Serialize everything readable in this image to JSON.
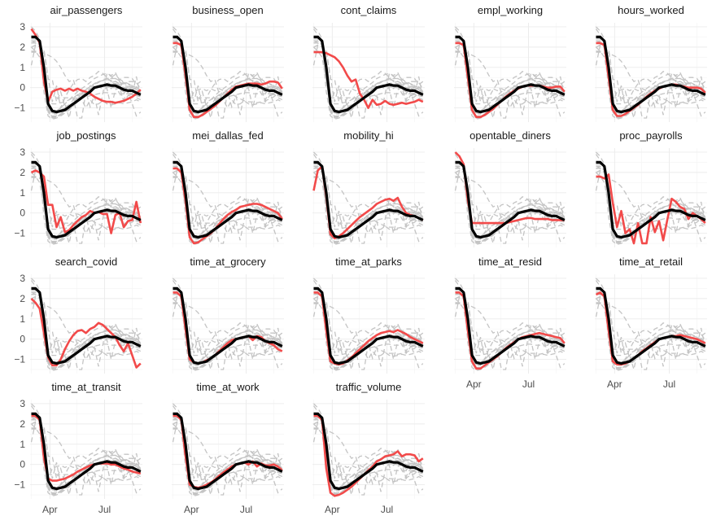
{
  "chart_data": {
    "type": "line",
    "layout": "facet-grid",
    "y_ticks": [
      3,
      2,
      1,
      0,
      -1
    ],
    "ylim": [
      -1.7,
      3.2
    ],
    "x_ticks": [
      "Apr",
      "Jul"
    ],
    "x": [
      "2020-03-01",
      "2020-03-08",
      "2020-03-15",
      "2020-03-22",
      "2020-03-29",
      "2020-04-05",
      "2020-04-12",
      "2020-04-19",
      "2020-04-26",
      "2020-05-03",
      "2020-05-10",
      "2020-05-17",
      "2020-05-24",
      "2020-05-31",
      "2020-06-07",
      "2020-06-14",
      "2020-06-21",
      "2020-06-28",
      "2020-07-05",
      "2020-07-12",
      "2020-07-19",
      "2020-07-26",
      "2020-08-02",
      "2020-08-09",
      "2020-08-16",
      "2020-08-23",
      "2020-08-30"
    ],
    "common_series": [
      2.5,
      2.5,
      2.3,
      1.0,
      -0.8,
      -1.15,
      -1.2,
      -1.15,
      -1.1,
      -0.95,
      -0.8,
      -0.65,
      -0.5,
      -0.35,
      -0.2,
      0.0,
      0.05,
      0.1,
      0.15,
      0.1,
      0.1,
      0.0,
      -0.1,
      -0.15,
      -0.15,
      -0.25,
      -0.35
    ],
    "colors": {
      "common": "#000000",
      "indicator": "#f24a4a",
      "others": "#c4c4c4"
    },
    "panels": [
      {
        "name": "air_passengers",
        "values": [
          2.9,
          2.6,
          2.2,
          0.3,
          -0.7,
          -0.2,
          -0.1,
          -0.05,
          -0.15,
          -0.05,
          -0.15,
          -0.05,
          -0.15,
          -0.2,
          -0.3,
          -0.45,
          -0.55,
          -0.65,
          -0.7,
          -0.7,
          -0.75,
          -0.7,
          -0.65,
          -0.55,
          -0.45,
          -0.3,
          -0.1
        ]
      },
      {
        "name": "business_open",
        "values": [
          2.2,
          2.2,
          2.1,
          0.6,
          -1.1,
          -1.45,
          -1.45,
          -1.35,
          -1.2,
          -1.05,
          -0.9,
          -0.7,
          -0.5,
          -0.3,
          -0.1,
          0.05,
          0.1,
          0.15,
          0.2,
          0.2,
          0.2,
          0.15,
          0.2,
          0.3,
          0.3,
          0.25,
          -0.05
        ]
      },
      {
        "name": "cont_claims",
        "values": [
          1.75,
          1.75,
          1.75,
          1.7,
          1.6,
          1.5,
          1.3,
          1.0,
          0.6,
          0.3,
          0.4,
          -0.3,
          -0.6,
          -1.0,
          -0.6,
          -0.85,
          -0.8,
          -0.65,
          -0.8,
          -0.85,
          -0.8,
          -0.75,
          -0.8,
          -0.75,
          -0.7,
          -0.6,
          -0.7
        ]
      },
      {
        "name": "empl_working",
        "values": [
          2.2,
          2.2,
          2.1,
          0.5,
          -1.1,
          -1.45,
          -1.45,
          -1.35,
          -1.2,
          -1.05,
          -0.85,
          -0.65,
          -0.45,
          -0.3,
          -0.15,
          -0.05,
          0.05,
          0.1,
          0.1,
          0.1,
          0.1,
          0.05,
          0.0,
          0.0,
          0.05,
          0.05,
          -0.2
        ]
      },
      {
        "name": "hours_worked",
        "values": [
          2.2,
          2.2,
          2.1,
          0.5,
          -1.1,
          -1.4,
          -1.4,
          -1.3,
          -1.15,
          -1.0,
          -0.85,
          -0.65,
          -0.45,
          -0.3,
          -0.15,
          -0.05,
          0.05,
          0.1,
          0.15,
          0.15,
          0.1,
          0.05,
          0.0,
          0.0,
          0.0,
          -0.05,
          -0.25
        ]
      },
      {
        "name": "job_postings",
        "values": [
          2.0,
          2.1,
          2.0,
          1.8,
          0.4,
          0.4,
          -0.7,
          -0.2,
          -0.95,
          -0.85,
          -0.6,
          -0.4,
          -0.2,
          -0.1,
          0.1,
          0.0,
          0.05,
          -0.05,
          -0.05,
          -1.0,
          -0.1,
          0.0,
          -0.7,
          -0.4,
          -0.35,
          0.55,
          -0.5
        ]
      },
      {
        "name": "mei_dallas_fed",
        "values": [
          2.2,
          2.2,
          2.0,
          0.6,
          -1.2,
          -1.5,
          -1.45,
          -1.3,
          -1.15,
          -1.0,
          -0.8,
          -0.55,
          -0.3,
          -0.1,
          0.05,
          0.15,
          0.3,
          0.35,
          0.4,
          0.45,
          0.45,
          0.4,
          0.3,
          0.2,
          0.1,
          0.0,
          -0.3
        ]
      },
      {
        "name": "mobility_hi",
        "values": [
          1.1,
          2.1,
          2.3,
          0.8,
          -1.05,
          -1.25,
          -1.15,
          -1.0,
          -0.8,
          -0.6,
          -0.4,
          -0.2,
          -0.05,
          0.1,
          0.25,
          0.45,
          0.55,
          0.65,
          0.7,
          0.6,
          0.75,
          0.3,
          0.0,
          -0.1,
          -0.15,
          -0.25,
          -0.35
        ]
      },
      {
        "name": "opentable_diners",
        "values": [
          3.0,
          2.8,
          2.4,
          0.6,
          -0.5,
          -0.5,
          -0.5,
          -0.5,
          -0.5,
          -0.5,
          -0.5,
          -0.5,
          -0.5,
          -0.45,
          -0.4,
          -0.35,
          -0.3,
          -0.25,
          -0.25,
          -0.3,
          -0.3,
          -0.3,
          -0.3,
          -0.35,
          -0.35,
          -0.35,
          -0.35
        ]
      },
      {
        "name": "proc_payrolls",
        "values": [
          1.8,
          1.8,
          1.7,
          1.9,
          0.5,
          -0.7,
          0.1,
          -1.0,
          -0.8,
          -1.5,
          -0.5,
          -1.5,
          -1.5,
          -0.2,
          -0.95,
          -0.4,
          -1.35,
          -0.3,
          0.7,
          0.55,
          0.3,
          0.2,
          -0.3,
          0.0,
          -0.15,
          -0.3,
          -0.5
        ]
      },
      {
        "name": "search_covid",
        "values": [
          2.0,
          1.8,
          1.5,
          0.3,
          -0.9,
          -1.3,
          -1.3,
          -1.0,
          -0.5,
          -0.1,
          0.2,
          0.4,
          0.45,
          0.3,
          0.5,
          0.6,
          0.8,
          0.7,
          0.5,
          0.3,
          0.1,
          -0.3,
          -0.6,
          -0.2,
          -0.8,
          -1.4,
          -1.2
        ]
      },
      {
        "name": "time_at_grocery",
        "values": [
          2.3,
          2.3,
          2.1,
          0.5,
          -1.0,
          -1.15,
          -1.2,
          -1.15,
          -1.05,
          -0.95,
          -0.8,
          -0.6,
          -0.4,
          -0.2,
          -0.05,
          0.0,
          0.05,
          0.1,
          0.15,
          -0.05,
          0.15,
          0.1,
          -0.1,
          -0.2,
          -0.3,
          -0.5,
          -0.6
        ]
      },
      {
        "name": "time_at_parks",
        "values": [
          2.3,
          2.3,
          2.1,
          0.4,
          -1.1,
          -1.2,
          -1.25,
          -1.2,
          -1.05,
          -0.9,
          -0.7,
          -0.5,
          -0.3,
          -0.1,
          0.05,
          0.2,
          0.3,
          0.35,
          0.4,
          0.35,
          0.45,
          0.35,
          0.25,
          0.1,
          0.0,
          -0.1,
          -0.2
        ]
      },
      {
        "name": "time_at_resid",
        "values": [
          2.3,
          2.3,
          2.1,
          0.4,
          -1.1,
          -1.45,
          -1.45,
          -1.3,
          -1.15,
          -1.0,
          -0.85,
          -0.65,
          -0.45,
          -0.3,
          -0.15,
          0.0,
          0.1,
          0.15,
          0.2,
          0.25,
          0.3,
          0.25,
          0.2,
          0.15,
          0.1,
          0.05,
          -0.2
        ]
      },
      {
        "name": "time_at_retail",
        "values": [
          2.2,
          2.3,
          2.1,
          0.4,
          -1.1,
          -1.25,
          -1.25,
          -1.2,
          -1.1,
          -0.95,
          -0.8,
          -0.6,
          -0.45,
          -0.3,
          -0.15,
          0.0,
          0.05,
          0.1,
          0.15,
          0.15,
          0.2,
          0.15,
          0.1,
          0.05,
          0.0,
          -0.1,
          -0.2
        ]
      },
      {
        "name": "time_at_transit",
        "values": [
          2.4,
          2.4,
          2.2,
          0.3,
          -0.7,
          -0.8,
          -0.8,
          -0.75,
          -0.7,
          -0.6,
          -0.5,
          -0.35,
          -0.25,
          -0.15,
          -0.05,
          0.0,
          0.05,
          0.05,
          0.05,
          0.0,
          0.0,
          -0.1,
          -0.2,
          -0.25,
          -0.35,
          -0.4,
          -0.45
        ]
      },
      {
        "name": "time_at_work",
        "values": [
          2.4,
          2.4,
          2.2,
          0.4,
          -1.0,
          -1.1,
          -1.15,
          -1.1,
          -1.0,
          -0.9,
          -0.75,
          -0.55,
          -0.4,
          -0.25,
          -0.1,
          0.0,
          0.05,
          0.1,
          0.0,
          0.15,
          -0.1,
          0.05,
          -0.05,
          -0.05,
          0.0,
          -0.1,
          -0.3
        ]
      },
      {
        "name": "traffic_volume",
        "values": [
          2.4,
          2.4,
          2.2,
          -0.2,
          -1.4,
          -1.55,
          -1.5,
          -1.4,
          -1.25,
          -1.1,
          -0.9,
          -0.7,
          -0.5,
          -0.3,
          -0.1,
          0.15,
          0.25,
          0.4,
          0.45,
          0.5,
          0.65,
          0.4,
          0.5,
          0.5,
          0.45,
          0.15,
          0.3
        ]
      }
    ]
  }
}
